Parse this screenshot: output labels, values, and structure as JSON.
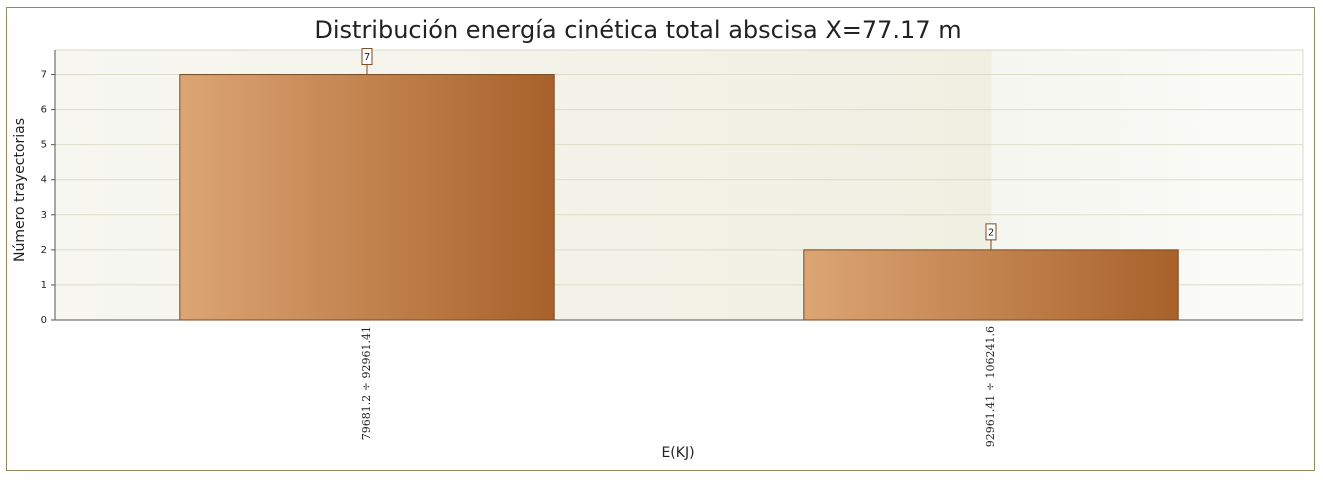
{
  "chart_data": {
    "type": "bar",
    "title": "Distribución energía cinética total abscisa X=77.17 m",
    "x_label": "E(KJ)",
    "y_label": "Número trayectorias",
    "categories": [
      "79681.2 ÷ 92961.41",
      "92961.41 ÷ 106241.6"
    ],
    "values": [
      7,
      2
    ],
    "gradient": [
      "#dca574",
      "#a8612a"
    ],
    "ylim": [
      0,
      7.7
    ],
    "yticks": [
      0,
      1,
      2,
      3,
      4,
      5,
      6,
      7
    ],
    "grid": true
  }
}
